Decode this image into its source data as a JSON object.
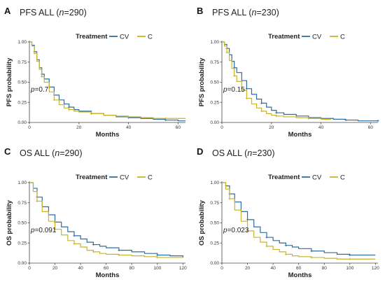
{
  "colors": {
    "CV": "#2e6d9e",
    "C": "#c9b42a"
  },
  "chart_data": [
    {
      "type": "line",
      "letter": "A",
      "title_prefix": "PFS ALL (",
      "title_n": "n",
      "title_suffix": "=290)",
      "xlabel": "Months",
      "ylabel": "PFS probability",
      "legend_title": "Treatment",
      "legend_placement": "top-right",
      "xlim": [
        0,
        63
      ],
      "ylim": [
        0,
        1
      ],
      "x_ticks": [
        0,
        20,
        40,
        60
      ],
      "y_ticks": [
        "0.00",
        "0.25",
        "0.50",
        "0.75",
        "1.00"
      ],
      "p_prefix": "p",
      "p_value": "=0.7",
      "series": [
        {
          "name": "CV",
          "x": [
            0,
            1,
            2,
            3,
            4,
            5,
            6,
            8,
            10,
            12,
            14,
            16,
            18,
            20,
            25,
            30,
            35,
            40,
            45,
            50,
            55,
            60,
            63
          ],
          "y": [
            1.0,
            0.96,
            0.88,
            0.78,
            0.68,
            0.6,
            0.54,
            0.44,
            0.34,
            0.28,
            0.23,
            0.19,
            0.16,
            0.14,
            0.11,
            0.09,
            0.07,
            0.06,
            0.05,
            0.04,
            0.03,
            0.02,
            0.02
          ]
        },
        {
          "name": "C",
          "x": [
            0,
            1,
            2,
            3,
            4,
            5,
            6,
            8,
            10,
            12,
            14,
            16,
            18,
            20,
            25,
            30,
            35,
            40,
            45,
            50,
            55,
            60,
            63
          ],
          "y": [
            1.0,
            0.95,
            0.86,
            0.76,
            0.66,
            0.57,
            0.5,
            0.38,
            0.28,
            0.22,
            0.18,
            0.16,
            0.14,
            0.13,
            0.11,
            0.09,
            0.08,
            0.07,
            0.06,
            0.05,
            0.05,
            0.05,
            0.05
          ]
        }
      ]
    },
    {
      "type": "line",
      "letter": "B",
      "title_prefix": "PFS ALL (",
      "title_n": "n",
      "title_suffix": "=230)",
      "xlabel": "Months",
      "ylabel": "PFS probability",
      "legend_title": "Treatment",
      "legend_placement": "top-right",
      "xlim": [
        0,
        63
      ],
      "ylim": [
        0,
        1
      ],
      "x_ticks": [
        0,
        20,
        40,
        60
      ],
      "y_ticks": [
        "0.00",
        "0.25",
        "0.50",
        "0.75",
        "1.00"
      ],
      "p_prefix": "p",
      "p_value": "=0.15",
      "series": [
        {
          "name": "CV",
          "x": [
            0,
            1,
            2,
            3,
            4,
            5,
            6,
            8,
            10,
            12,
            14,
            16,
            18,
            20,
            22,
            25,
            30,
            35,
            40,
            45,
            50,
            55,
            60,
            63
          ],
          "y": [
            1.0,
            0.97,
            0.92,
            0.84,
            0.76,
            0.68,
            0.62,
            0.52,
            0.42,
            0.35,
            0.29,
            0.24,
            0.19,
            0.15,
            0.12,
            0.1,
            0.08,
            0.06,
            0.05,
            0.04,
            0.03,
            0.02,
            0.02,
            0.02
          ]
        },
        {
          "name": "C",
          "x": [
            0,
            1,
            2,
            3,
            4,
            5,
            6,
            8,
            10,
            12,
            14,
            16,
            18,
            20,
            22,
            25,
            30,
            35,
            40,
            44
          ],
          "y": [
            1.0,
            0.95,
            0.87,
            0.77,
            0.67,
            0.58,
            0.51,
            0.4,
            0.3,
            0.23,
            0.18,
            0.14,
            0.11,
            0.09,
            0.08,
            0.07,
            0.06,
            0.05,
            0.04,
            0.04
          ]
        }
      ]
    },
    {
      "type": "line",
      "letter": "C",
      "title_prefix": "OS ALL (",
      "title_n": "n",
      "title_suffix": "=290)",
      "xlabel": "Months",
      "ylabel": "OS probability",
      "legend_title": "Treatment",
      "legend_placement": "top-right",
      "xlim": [
        0,
        122
      ],
      "ylim": [
        0,
        1
      ],
      "x_ticks": [
        0,
        20,
        40,
        60,
        80,
        100,
        120
      ],
      "y_ticks": [
        "0.00",
        "0.25",
        "0.50",
        "0.75",
        "1.00"
      ],
      "p_prefix": "p",
      "p_value": "=0.091",
      "series": [
        {
          "name": "CV",
          "x": [
            0,
            3,
            6,
            10,
            15,
            20,
            25,
            30,
            35,
            40,
            45,
            50,
            55,
            60,
            70,
            80,
            90,
            100,
            110,
            120
          ],
          "y": [
            1.0,
            0.93,
            0.82,
            0.7,
            0.6,
            0.51,
            0.45,
            0.39,
            0.34,
            0.3,
            0.26,
            0.23,
            0.21,
            0.19,
            0.16,
            0.14,
            0.12,
            0.1,
            0.09,
            0.07
          ]
        },
        {
          "name": "C",
          "x": [
            0,
            3,
            6,
            10,
            15,
            20,
            25,
            30,
            35,
            40,
            45,
            50,
            55,
            60,
            70,
            80,
            90,
            100,
            110,
            120
          ],
          "y": [
            1.0,
            0.89,
            0.77,
            0.64,
            0.52,
            0.42,
            0.35,
            0.28,
            0.24,
            0.2,
            0.16,
            0.14,
            0.12,
            0.11,
            0.1,
            0.09,
            0.08,
            0.07,
            0.07,
            0.07
          ]
        }
      ]
    },
    {
      "type": "line",
      "letter": "D",
      "title_prefix": "OS ALL (",
      "title_n": "n",
      "title_suffix": "=230)",
      "xlabel": "Months",
      "ylabel": "OS probability",
      "legend_title": "Treatment",
      "legend_placement": "top-right",
      "xlim": [
        0,
        122
      ],
      "ylim": [
        0,
        1
      ],
      "x_ticks": [
        0,
        20,
        40,
        60,
        80,
        100,
        120
      ],
      "y_ticks": [
        "0.00",
        "0.25",
        "0.50",
        "0.75",
        "1.00"
      ],
      "p_prefix": "p",
      "p_value": "=0.023",
      "series": [
        {
          "name": "CV",
          "x": [
            0,
            3,
            6,
            10,
            15,
            20,
            25,
            30,
            35,
            40,
            45,
            50,
            55,
            60,
            70,
            80,
            90,
            100,
            110,
            120
          ],
          "y": [
            1.0,
            0.96,
            0.86,
            0.76,
            0.64,
            0.54,
            0.45,
            0.38,
            0.32,
            0.28,
            0.25,
            0.22,
            0.2,
            0.18,
            0.15,
            0.13,
            0.11,
            0.1,
            0.1,
            0.1
          ]
        },
        {
          "name": "C",
          "x": [
            0,
            3,
            6,
            10,
            15,
            20,
            25,
            30,
            35,
            40,
            45,
            50,
            55,
            60,
            70,
            80,
            90,
            100,
            110,
            120
          ],
          "y": [
            1.0,
            0.92,
            0.8,
            0.66,
            0.52,
            0.4,
            0.32,
            0.26,
            0.21,
            0.17,
            0.14,
            0.11,
            0.09,
            0.08,
            0.07,
            0.06,
            0.05,
            0.05,
            0.05,
            0.05
          ]
        }
      ]
    }
  ]
}
